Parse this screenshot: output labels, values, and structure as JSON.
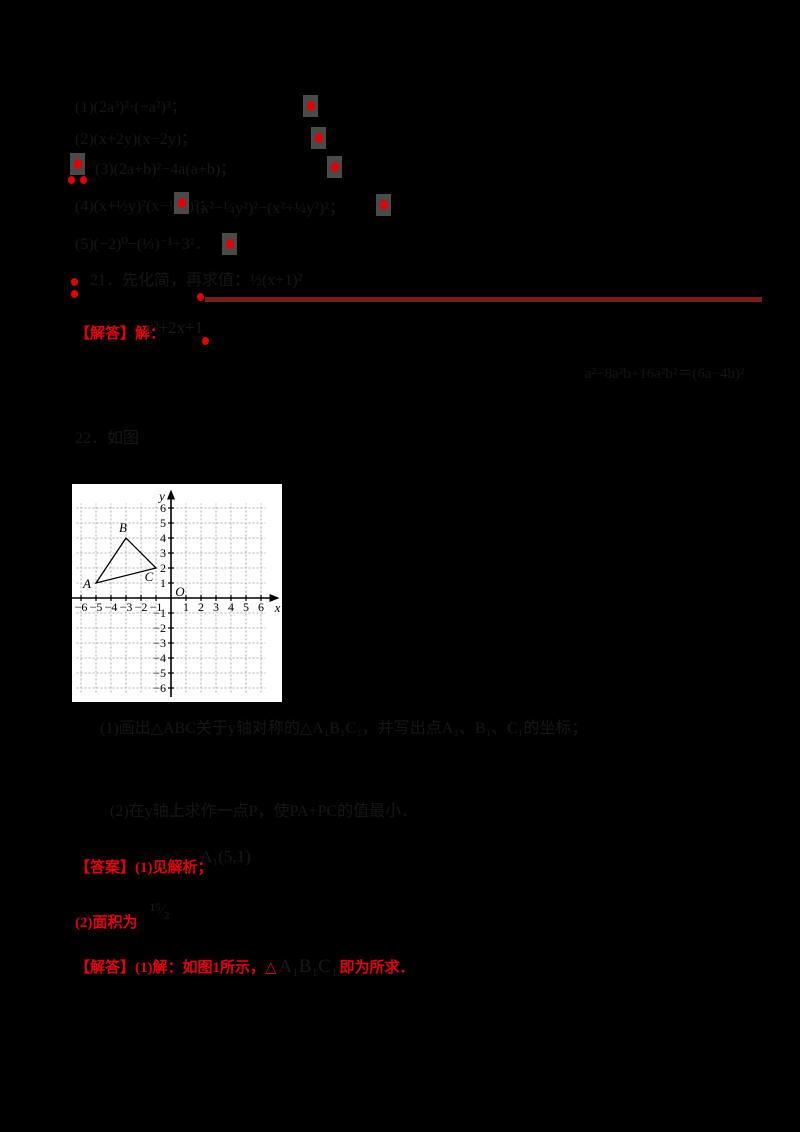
{
  "document": {
    "problems": [
      {
        "text": "(1)(2a³)²·(−a²)³；"
      },
      {
        "text": "(2)(x+2y)(x−2y)；"
      },
      {
        "text": "(3)(2a+b)²−4a(a+b)；"
      },
      {
        "text": "(4)(x+½y)²(x−½y)²；"
      },
      {
        "text": "(x²−¼y²)²−(x²+¼y²)²；"
      },
      {
        "text": "(5)(−2)⁰−(⅓)⁻¹+3²．"
      },
      {
        "text": "21．先化简，再求值：½(x+1)²"
      }
    ],
    "answer_intro": {
      "label": "【解答】解：",
      "math": "x²+2x+1"
    },
    "side_formula": "a²−8a²b+16a²b²＝(6a−4b)²",
    "q22_heading": "22．如图",
    "q22_parts": [
      "(1)画出△ABC关于y轴对称的△A₁B₁C₁，并写出点A₁、B₁、C₁的坐标；",
      "(2)在y轴上求作一点P，使PA+PC的值最小．"
    ],
    "answers": {
      "a1_red": "【答案】(1)见解析；",
      "a1_math": "A₁(5,1)",
      "a2_red": "(2)面积为",
      "a2_math": "¹⁵⁄₂",
      "a3_red_prefix": "【解答】(1)解：如图1所示，△",
      "a3_math": "A₁B₁C₁",
      "a3_red_suffix": "即为所求．"
    }
  },
  "colors": {
    "background": "#000000",
    "accent_red": "#e8000d",
    "answer_line_red": "#7d1a1a",
    "dim_text": "#161616",
    "dot_highlight_box": "#4a4a4a"
  },
  "chart_data": {
    "type": "line",
    "title": "",
    "xlabel": "x",
    "ylabel": "y",
    "origin_label": "O",
    "xlim": [
      -6,
      6
    ],
    "ylim": [
      -6,
      6
    ],
    "xticks": [
      -6,
      -5,
      -4,
      -3,
      -2,
      -1,
      1,
      2,
      3,
      4,
      5,
      6
    ],
    "yticks": [
      -6,
      -5,
      -4,
      -3,
      -2,
      -1,
      1,
      2,
      3,
      4,
      5,
      6
    ],
    "grid": true,
    "grid_style": "dashed",
    "shape": "closed triangle ABC",
    "points": [
      {
        "label": "A",
        "x": -5,
        "y": 1
      },
      {
        "label": "B",
        "x": -3,
        "y": 4
      },
      {
        "label": "C",
        "x": -1,
        "y": 2
      }
    ]
  }
}
